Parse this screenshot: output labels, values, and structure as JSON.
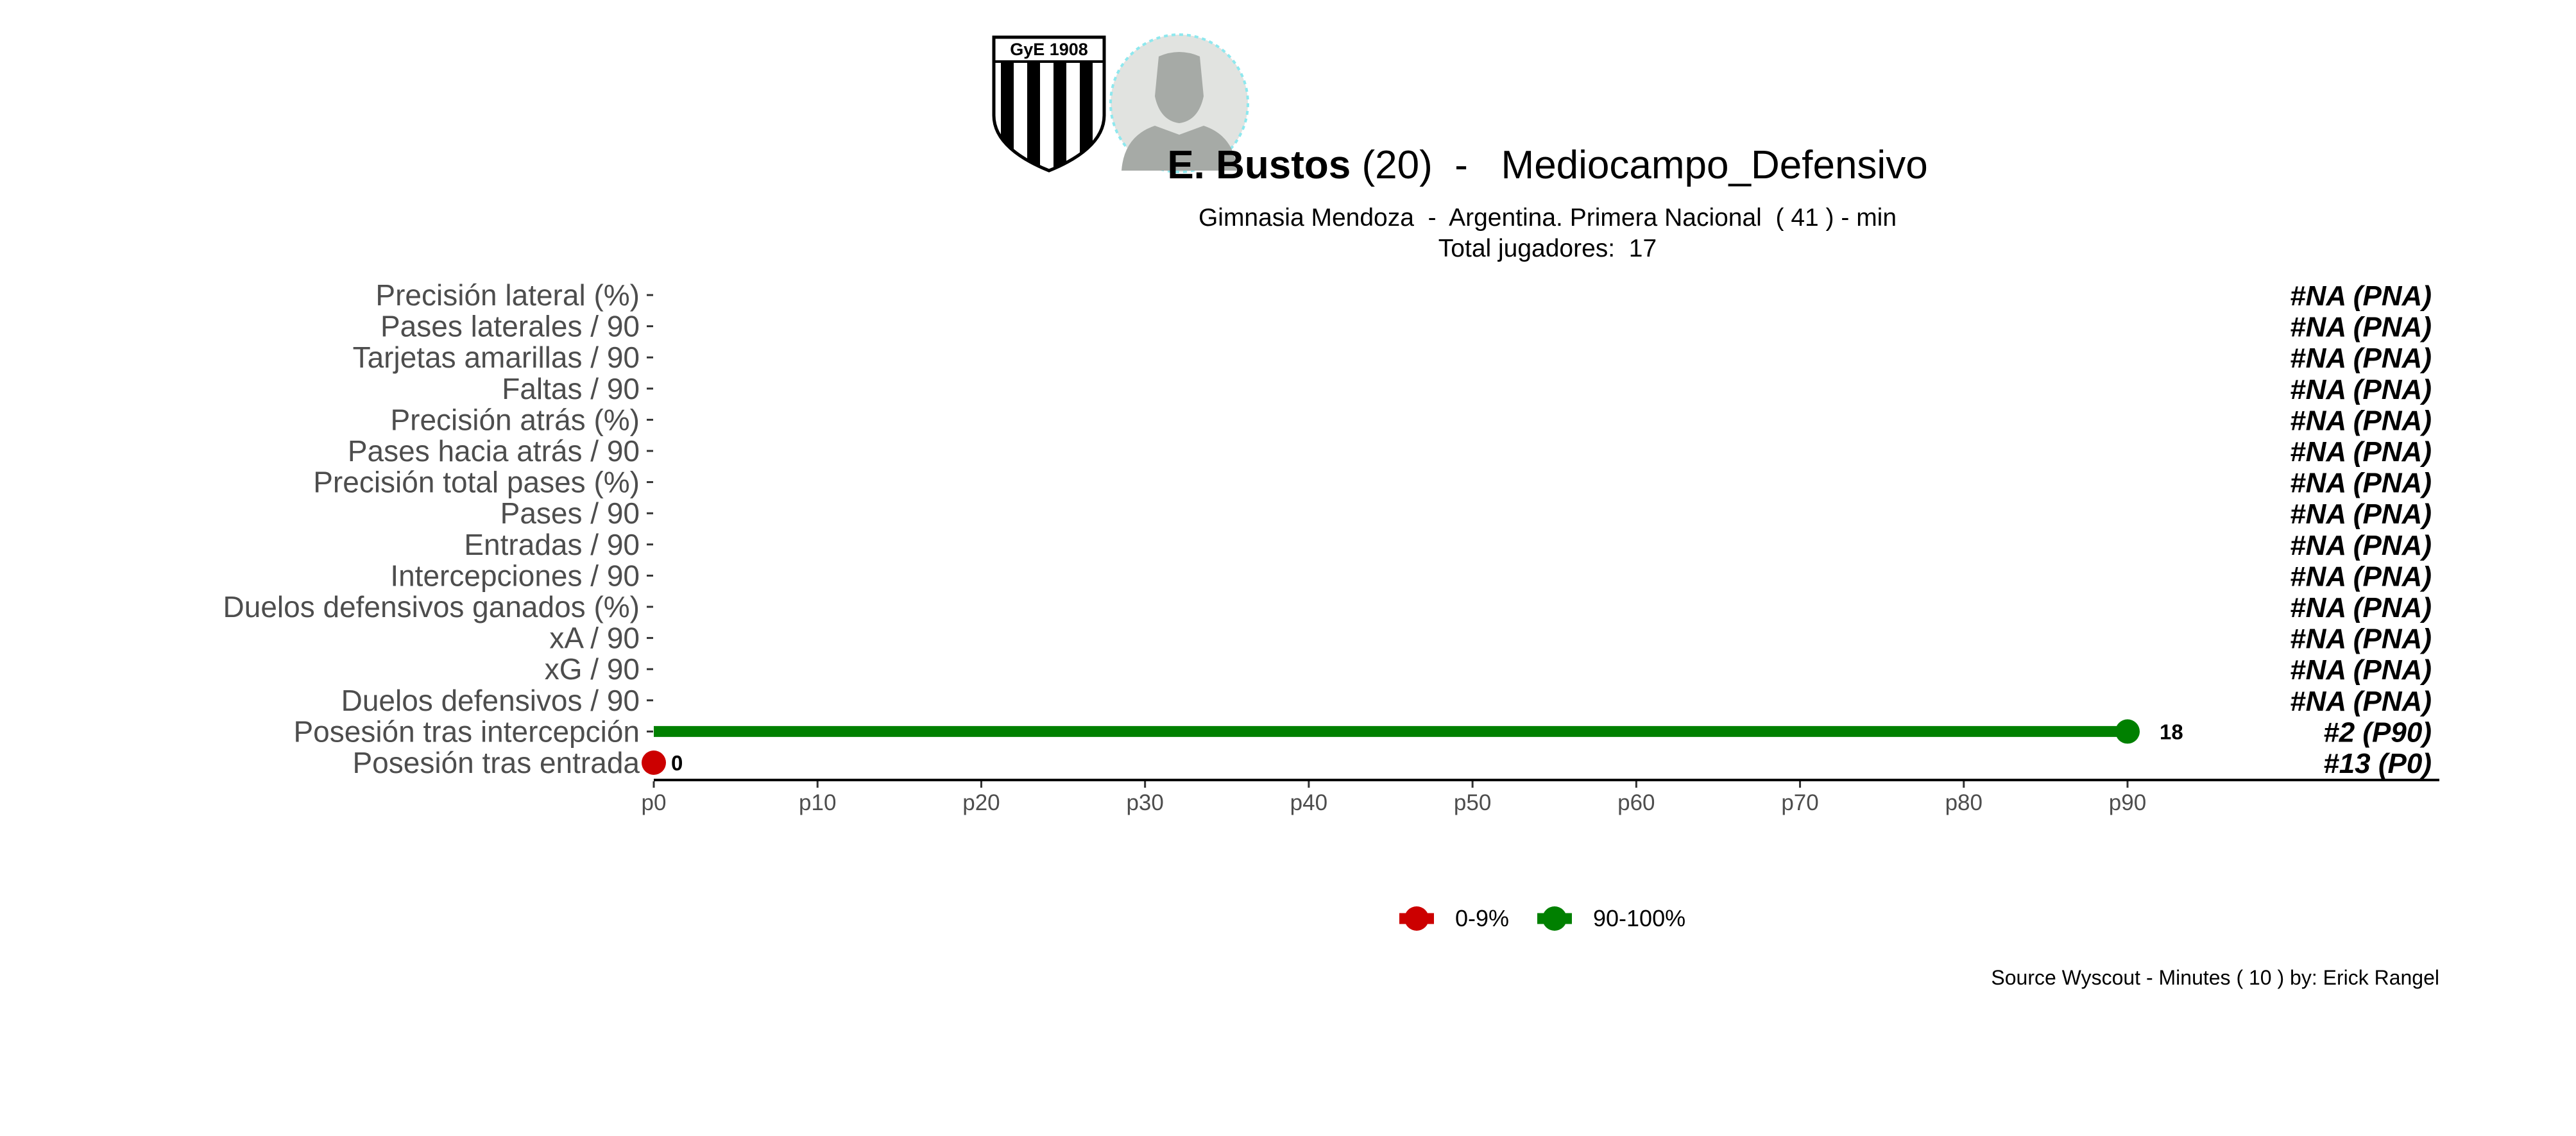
{
  "header": {
    "player_name": "E. Bustos",
    "player_age": "(20)",
    "separator": " -  ",
    "position": "Mediocampo_Defensivo",
    "subtitle": "Gimnasia Mendoza  -  Argentina. Primera Nacional  ( 41 ) - min",
    "subtitle2": "Total jugadores:  17",
    "club_logo_text": "GyE 1908"
  },
  "caption": "Source Wyscout - Minutes ( 10 ) by: Erick Rangel",
  "colors": {
    "low": "#cc0000",
    "high": "#008000",
    "text": "#000000",
    "axis_text": "#4d4d4d"
  },
  "chart_data": {
    "type": "lollipop",
    "x_ticks": [
      "p0",
      "p10",
      "p20",
      "p30",
      "p40",
      "p50",
      "p60",
      "p70",
      "p80",
      "p90"
    ],
    "xlim": [
      0,
      100
    ],
    "grid": false,
    "legend_position": "bottom",
    "legend": [
      {
        "label": "0-9%",
        "color": "#cc0000"
      },
      {
        "label": "90-100%",
        "color": "#008000"
      }
    ],
    "metrics": [
      {
        "label": "Precisión lateral (%)",
        "rank": "#NA (PNA)"
      },
      {
        "label": "Pases laterales / 90",
        "rank": "#NA (PNA)"
      },
      {
        "label": "Tarjetas amarillas / 90",
        "rank": "#NA (PNA)"
      },
      {
        "label": "Faltas / 90",
        "rank": "#NA (PNA)"
      },
      {
        "label": "Precisión atrás (%)",
        "rank": "#NA (PNA)"
      },
      {
        "label": "Pases hacia atrás / 90",
        "rank": "#NA (PNA)"
      },
      {
        "label": "Precisión total pases (%)",
        "rank": "#NA (PNA)"
      },
      {
        "label": "Pases / 90",
        "rank": "#NA (PNA)"
      },
      {
        "label": "Entradas / 90",
        "rank": "#NA (PNA)"
      },
      {
        "label": "Intercepciones / 90",
        "rank": "#NA (PNA)"
      },
      {
        "label": "Duelos defensivos ganados (%)",
        "rank": "#NA (PNA)"
      },
      {
        "label": "xA / 90",
        "rank": "#NA (PNA)"
      },
      {
        "label": "xG / 90",
        "rank": "#NA (PNA)"
      },
      {
        "label": "Duelos defensivos / 90",
        "rank": "#NA (PNA)"
      },
      {
        "label": "Posesión tras intercepción",
        "rank": "#2 (P90)",
        "percentile": 90,
        "value": "18",
        "color": "#008000"
      },
      {
        "label": "Posesión tras entrada",
        "rank": "#13 (P0)",
        "percentile": 0,
        "value": "0",
        "color": "#cc0000"
      }
    ]
  }
}
